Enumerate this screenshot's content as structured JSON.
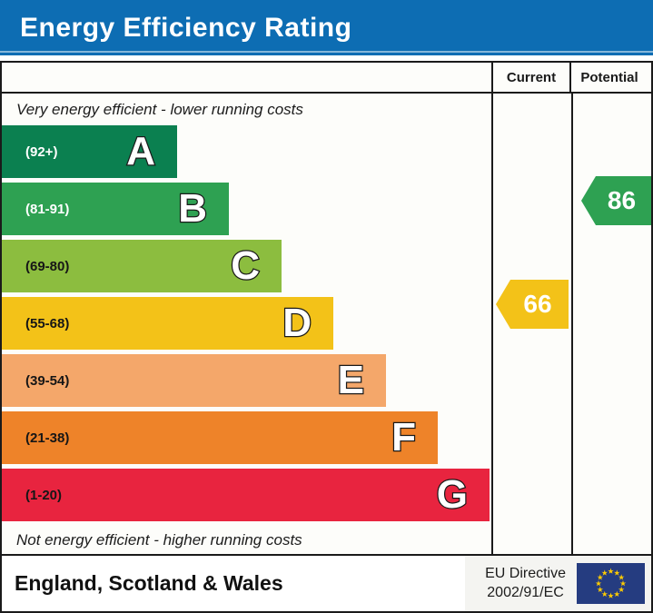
{
  "title": "Energy Efficiency Rating",
  "columns": [
    "Current",
    "Potential"
  ],
  "chart_data": {
    "type": "bar",
    "title": "Energy Efficiency Rating",
    "top_note": "Very energy efficient - lower running costs",
    "bottom_note": "Not energy efficient - higher running costs",
    "scale": [
      1,
      100
    ],
    "bands": [
      {
        "letter": "A",
        "range": "(92+)",
        "color": "#0b8050",
        "label_color": "#ffffff"
      },
      {
        "letter": "B",
        "range": "(81-91)",
        "color": "#2ea152",
        "label_color": "#ffffff"
      },
      {
        "letter": "C",
        "range": "(69-80)",
        "color": "#8cbd3f",
        "label_color": "#161616"
      },
      {
        "letter": "D",
        "range": "(55-68)",
        "color": "#f3c218",
        "label_color": "#161616"
      },
      {
        "letter": "E",
        "range": "(39-54)",
        "color": "#f4a76a",
        "label_color": "#161616"
      },
      {
        "letter": "F",
        "range": "(21-38)",
        "color": "#ee8329",
        "label_color": "#161616"
      },
      {
        "letter": "G",
        "range": "(1-20)",
        "color": "#e8243f",
        "label_color": "#161616"
      }
    ],
    "current": {
      "value": "66",
      "band": "D",
      "color": "#f3c218"
    },
    "potential": {
      "value": "86",
      "band": "B",
      "color": "#2ea152"
    }
  },
  "footer": {
    "region": "England, Scotland & Wales",
    "directive_line1": "EU Directive",
    "directive_line2": "2002/91/EC",
    "eu_flag": {
      "background": "#253c80",
      "star_color": "#ffcc00"
    }
  },
  "colors": {
    "titlebar": "#0d6db3",
    "border": "#1a1a1a"
  }
}
